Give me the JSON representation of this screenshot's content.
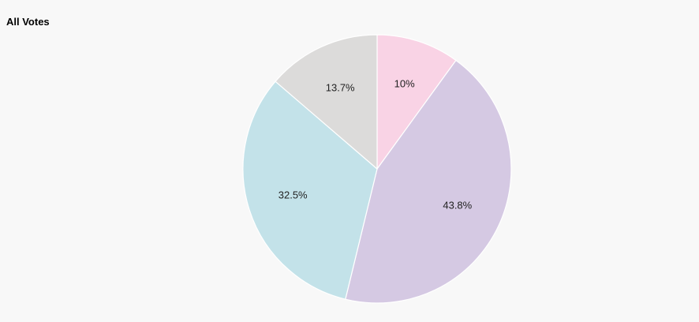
{
  "chart_data": {
    "type": "pie",
    "title": "All Votes",
    "slices": [
      {
        "label": "10%",
        "value": 10,
        "color": "#f9d3e5"
      },
      {
        "label": "43.8%",
        "value": 43.8,
        "color": "#d5c9e3"
      },
      {
        "label": "32.5%",
        "value": 32.5,
        "color": "#c3e2e9"
      },
      {
        "label": "13.7%",
        "value": 13.7,
        "color": "#dcdbda"
      }
    ],
    "start_angle": "12 o'clock",
    "direction": "clockwise",
    "legend": "none"
  }
}
